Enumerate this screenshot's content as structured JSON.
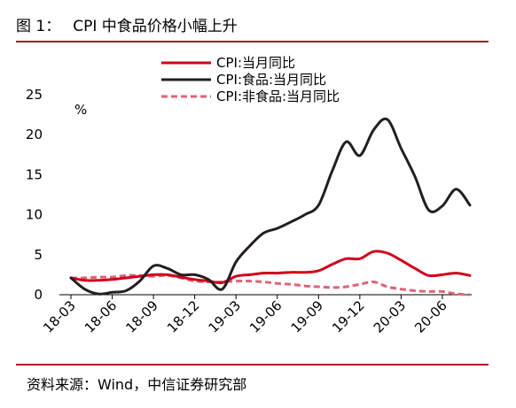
{
  "figure": {
    "label": "图 1：",
    "title": "CPI 中食品价格小幅上升",
    "source": "资料来源：Wind，中信证券研究部"
  },
  "colors": {
    "accent_rule": "#a41e22"
  },
  "chart_data": {
    "type": "line",
    "title": "",
    "xlabel": "",
    "ylabel": "%",
    "ylim": [
      0,
      25
    ],
    "yticks": [
      0,
      5,
      10,
      15,
      20,
      25
    ],
    "grid": false,
    "legend_position": "top-right",
    "x": [
      "18-03",
      "18-04",
      "18-05",
      "18-06",
      "18-07",
      "18-08",
      "18-09",
      "18-10",
      "18-11",
      "18-12",
      "19-01",
      "19-02",
      "19-03",
      "19-04",
      "19-05",
      "19-06",
      "19-07",
      "19-08",
      "19-09",
      "19-10",
      "19-11",
      "19-12",
      "20-01",
      "20-02",
      "20-03",
      "20-04",
      "20-05",
      "20-06",
      "20-07",
      "20-08"
    ],
    "xtick_labels": [
      "18-03",
      "18-06",
      "18-09",
      "18-12",
      "19-03",
      "19-06",
      "19-09",
      "19-12",
      "20-03",
      "20-06"
    ],
    "series": [
      {
        "name": "CPI:当月同比",
        "color": "#d0021b",
        "style": "solid",
        "values": [
          2.1,
          1.8,
          1.8,
          1.9,
          2.1,
          2.3,
          2.5,
          2.5,
          2.2,
          1.9,
          1.7,
          1.5,
          2.3,
          2.5,
          2.7,
          2.7,
          2.8,
          2.8,
          3.0,
          3.8,
          4.5,
          4.5,
          5.4,
          5.2,
          4.3,
          3.3,
          2.4,
          2.5,
          2.7,
          2.4
        ]
      },
      {
        "name": "CPI:食品:当月同比",
        "color": "#231f20",
        "style": "solid",
        "values": [
          2.1,
          0.7,
          0.1,
          0.3,
          0.5,
          1.7,
          3.6,
          3.3,
          2.5,
          2.5,
          1.9,
          0.7,
          4.1,
          6.1,
          7.7,
          8.3,
          9.1,
          10.0,
          11.2,
          15.5,
          19.1,
          17.4,
          20.6,
          21.9,
          18.3,
          14.8,
          10.6,
          11.1,
          13.2,
          11.2
        ]
      },
      {
        "name": "CPI:非食品:当月同比",
        "color": "#e06277",
        "style": "dashed",
        "values": [
          2.1,
          2.1,
          2.2,
          2.2,
          2.4,
          2.4,
          2.3,
          2.4,
          2.1,
          1.7,
          1.6,
          1.6,
          1.7,
          1.7,
          1.6,
          1.4,
          1.3,
          1.1,
          1.0,
          0.9,
          1.0,
          1.3,
          1.6,
          1.0,
          0.7,
          0.5,
          0.4,
          0.4,
          0.1,
          0.0
        ]
      }
    ]
  }
}
